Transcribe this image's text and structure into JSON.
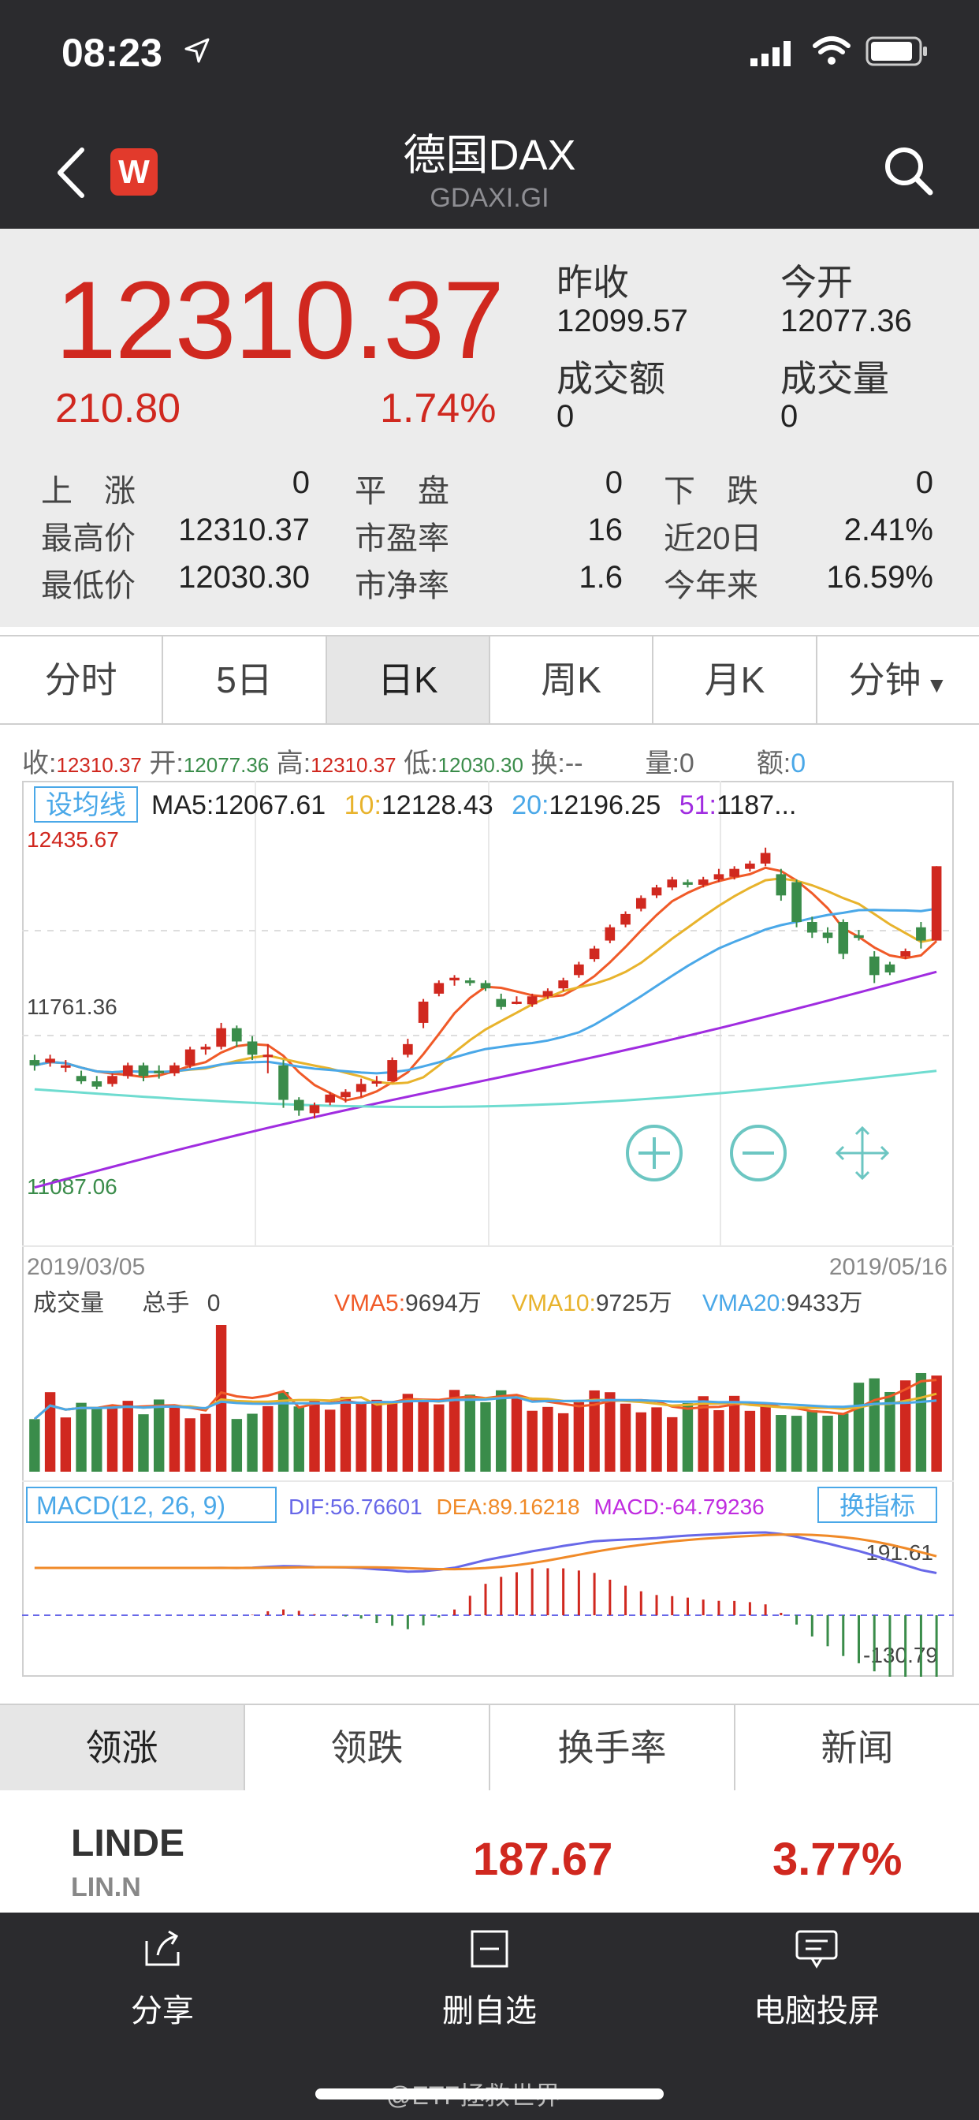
{
  "status": {
    "time": "08:23"
  },
  "nav": {
    "title": "德国DAX",
    "subtitle": "GDAXI.GI",
    "logo": "W"
  },
  "quote": {
    "price": "12310.37",
    "change": "210.80",
    "change_pct": "1.74%",
    "prev_close_label": "昨收",
    "prev_close": "12099.57",
    "open_label": "今开",
    "open": "12077.36",
    "turnover_label": "成交额",
    "turnover": "0",
    "volume_label": "成交量",
    "volume": "0",
    "stats": [
      {
        "label": "上　涨",
        "value": "0"
      },
      {
        "label": "平　盘",
        "value": "0"
      },
      {
        "label": "下　跌",
        "value": "0"
      },
      {
        "label": "最高价",
        "value": "12310.37"
      },
      {
        "label": "市盈率",
        "value": "16"
      },
      {
        "label": "近20日",
        "value": "2.41%"
      },
      {
        "label": "最低价",
        "value": "12030.30"
      },
      {
        "label": "市净率",
        "value": "1.6"
      },
      {
        "label": "今年来",
        "value": "16.59%"
      }
    ]
  },
  "tabs": [
    "分时",
    "5日",
    "日K",
    "周K",
    "月K",
    "分钟"
  ],
  "ohlc": {
    "close_label": "收:",
    "close": "12310.37",
    "open_label": "开:",
    "open": "12077.36",
    "high_label": "高:",
    "high": "12310.37",
    "low_label": "低:",
    "low": "12030.30",
    "swap_label": "换:",
    "swap": "--",
    "qty_label": "量:",
    "qty": "0",
    "amt_label": "额:",
    "amt": "0"
  },
  "chart_data": {
    "type": "candlestick",
    "ma_button": "设均线",
    "ma_legend": {
      "ma5_label": "MA5:",
      "ma5": "12067.61",
      "ma10_label": "10:",
      "ma10": "12128.43",
      "ma20_label": "20:",
      "ma20": "12196.25",
      "ma51_label": "51:",
      "ma51": "1187..."
    },
    "price_labels": {
      "top": "12435.67",
      "mid": "11761.36",
      "bottom": "11087.06"
    },
    "ylim": [
      11087.06,
      12435.67
    ],
    "date_start": "2019/03/05",
    "date_end": "2019/05/16",
    "candles": [
      [
        11580,
        11560,
        11600,
        11540
      ],
      [
        11570,
        11585,
        11600,
        11555
      ],
      [
        11560,
        11560,
        11580,
        11535
      ],
      [
        11520,
        11500,
        11540,
        11490
      ],
      [
        11500,
        11480,
        11520,
        11470
      ],
      [
        11490,
        11520,
        11530,
        11480
      ],
      [
        11520,
        11560,
        11570,
        11510
      ],
      [
        11560,
        11520,
        11570,
        11500
      ],
      [
        11540,
        11530,
        11560,
        11510
      ],
      [
        11530,
        11560,
        11570,
        11520
      ],
      [
        11560,
        11620,
        11630,
        11550
      ],
      [
        11620,
        11630,
        11640,
        11600
      ],
      [
        11630,
        11700,
        11720,
        11620
      ],
      [
        11700,
        11650,
        11710,
        11630
      ],
      [
        11650,
        11600,
        11670,
        11580
      ],
      [
        11600,
        11600,
        11640,
        11530
      ],
      [
        11560,
        11430,
        11580,
        11400
      ],
      [
        11430,
        11390,
        11440,
        11370
      ],
      [
        11380,
        11410,
        11420,
        11360
      ],
      [
        11420,
        11450,
        11460,
        11410
      ],
      [
        11440,
        11460,
        11470,
        11420
      ],
      [
        11460,
        11490,
        11510,
        11440
      ],
      [
        11500,
        11500,
        11520,
        11480
      ],
      [
        11500,
        11580,
        11590,
        11500
      ],
      [
        11600,
        11640,
        11660,
        11590
      ],
      [
        11720,
        11800,
        11810,
        11700
      ],
      [
        11830,
        11870,
        11880,
        11820
      ],
      [
        11880,
        11890,
        11900,
        11860
      ],
      [
        11880,
        11870,
        11890,
        11860
      ],
      [
        11870,
        11850,
        11880,
        11840
      ],
      [
        11810,
        11780,
        11830,
        11770
      ],
      [
        11800,
        11800,
        11820,
        11790
      ],
      [
        11790,
        11820,
        11830,
        11780
      ],
      [
        11820,
        11840,
        11850,
        11810
      ],
      [
        11850,
        11880,
        11890,
        11840
      ],
      [
        11900,
        11940,
        11950,
        11890
      ],
      [
        11960,
        12000,
        12010,
        11950
      ],
      [
        12030,
        12080,
        12090,
        12020
      ],
      [
        12090,
        12130,
        12140,
        12080
      ],
      [
        12150,
        12190,
        12200,
        12140
      ],
      [
        12200,
        12230,
        12240,
        12190
      ],
      [
        12230,
        12260,
        12270,
        12220
      ],
      [
        12250,
        12240,
        12260,
        12230
      ],
      [
        12240,
        12260,
        12270,
        12230
      ],
      [
        12260,
        12280,
        12300,
        12250
      ],
      [
        12270,
        12300,
        12310,
        12260
      ],
      [
        12300,
        12320,
        12330,
        12290
      ],
      [
        12320,
        12360,
        12380,
        12310
      ],
      [
        12280,
        12200,
        12300,
        12180
      ],
      [
        12250,
        12100,
        12260,
        12080
      ],
      [
        12100,
        12060,
        12120,
        12040
      ],
      [
        12060,
        12040,
        12080,
        12020
      ],
      [
        12100,
        11980,
        12110,
        11960
      ],
      [
        12050,
        12040,
        12070,
        12030
      ],
      [
        11970,
        11900,
        11990,
        11870
      ],
      [
        11940,
        11910,
        11950,
        11900
      ],
      [
        11970,
        11990,
        12000,
        11960
      ],
      [
        12080,
        12030,
        12100,
        12000
      ],
      [
        12030,
        12310,
        12310,
        12030
      ]
    ],
    "volume_label": "成交量",
    "total_label": "总手",
    "total": "0",
    "vma5_label": "VMA5:",
    "vma5": "9694万",
    "vma10_label": "VMA10:",
    "vma10": "9725万",
    "vma20_label": "VMA20:",
    "vma20": "9433万",
    "macd_label": "MACD(12, 26, 9)",
    "dif_label": "DIF:",
    "dif": "56.76601",
    "dea_label": "DEA:",
    "dea": "89.16218",
    "macd_val_label": "MACD:",
    "macd_val": "-64.79236",
    "switch_indicator": "换指标",
    "macd_max": "191.61",
    "macd_min": "-130.79",
    "colors": {
      "up": "#d0281f",
      "down": "#3a8c4a",
      "ma5": "#f05a28",
      "ma10": "#e8b32c",
      "ma20": "#4aa8e8",
      "ma51": "#a02ce0",
      "ma_long": "#6fdcd0"
    }
  },
  "bottom_tabs": [
    "领涨",
    "领跌",
    "换手率",
    "新闻"
  ],
  "stock": {
    "name": "LINDE",
    "code": "LIN.N",
    "price": "187.67",
    "pct": "3.77%"
  },
  "bottombar": {
    "share": "分享",
    "remove": "删自选",
    "cast": "电脑投屏"
  },
  "watermark": "@ETF拯救世界"
}
